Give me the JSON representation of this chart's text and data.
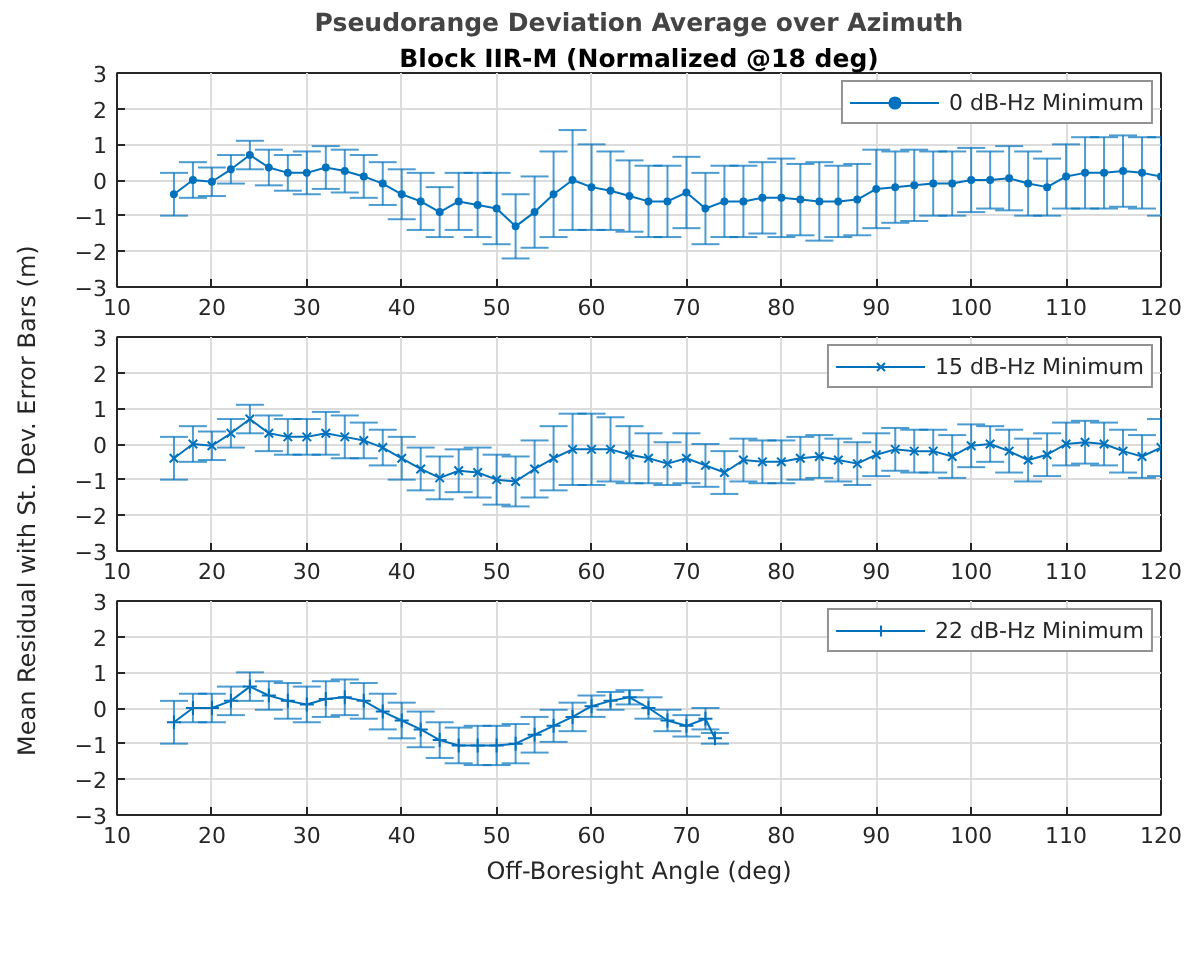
{
  "chart_data": [
    {
      "type": "line",
      "title": "Pseudorange Deviation Average over Azimuth",
      "subtitle": "Block IIR-M (Normalized @18 deg)",
      "x": [
        16,
        18,
        20,
        22,
        24,
        26,
        28,
        30,
        32,
        34,
        36,
        38,
        40,
        42,
        44,
        46,
        48,
        50,
        52,
        54,
        56,
        58,
        60,
        62,
        64,
        66,
        68,
        70,
        72,
        74,
        76,
        78,
        80,
        82,
        84,
        86,
        88,
        90,
        92,
        94,
        96,
        98,
        100,
        102,
        104,
        106,
        108,
        110,
        112,
        114,
        116,
        118,
        120
      ],
      "series": [
        {
          "name": "0 dB-Hz Minimum",
          "color": "#0072bd",
          "values": [
            -0.4,
            0.0,
            -0.05,
            0.3,
            0.7,
            0.35,
            0.2,
            0.2,
            0.35,
            0.25,
            0.1,
            -0.1,
            -0.4,
            -0.6,
            -0.9,
            -0.6,
            -0.7,
            -0.8,
            -1.3,
            -0.9,
            -0.4,
            0.0,
            -0.2,
            -0.3,
            -0.45,
            -0.6,
            -0.6,
            -0.35,
            -0.8,
            -0.6,
            -0.6,
            -0.5,
            -0.5,
            -0.55,
            -0.6,
            -0.6,
            -0.55,
            -0.25,
            -0.2,
            -0.15,
            -0.1,
            -0.1,
            0.0,
            0.0,
            0.05,
            -0.1,
            -0.2,
            0.1,
            0.2,
            0.2,
            0.25,
            0.2,
            0.1
          ],
          "errors": [
            0.6,
            0.5,
            0.4,
            0.4,
            0.4,
            0.5,
            0.5,
            0.6,
            0.6,
            0.6,
            0.6,
            0.6,
            0.7,
            0.8,
            0.7,
            0.8,
            0.9,
            1.0,
            0.9,
            1.0,
            1.2,
            1.4,
            1.2,
            1.1,
            1.0,
            1.0,
            1.0,
            1.0,
            1.0,
            1.0,
            1.0,
            1.0,
            1.1,
            1.0,
            1.1,
            1.0,
            1.0,
            1.1,
            1.0,
            1.0,
            0.9,
            0.9,
            0.9,
            0.8,
            0.9,
            0.9,
            0.8,
            0.9,
            1.0,
            1.0,
            1.0,
            1.0,
            1.1
          ]
        }
      ],
      "xlim": [
        10,
        120
      ],
      "xticks": [
        10,
        20,
        30,
        40,
        50,
        60,
        70,
        80,
        90,
        100,
        110,
        120
      ],
      "ylim": [
        -3,
        3
      ],
      "yticks": [
        -3,
        -2,
        -1,
        0,
        1,
        2,
        3
      ],
      "grid": true,
      "legend": "top right",
      "marker": "circle"
    },
    {
      "type": "line",
      "ylabel": "Mean Residual with St. Dev. Error Bars (m)",
      "x": [
        16,
        18,
        20,
        22,
        24,
        26,
        28,
        30,
        32,
        34,
        36,
        38,
        40,
        42,
        44,
        46,
        48,
        50,
        52,
        54,
        56,
        58,
        60,
        62,
        64,
        66,
        68,
        70,
        72,
        74,
        76,
        78,
        80,
        82,
        84,
        86,
        88,
        90,
        92,
        94,
        96,
        98,
        100,
        102,
        104,
        106,
        108,
        110,
        112,
        114,
        116,
        118,
        120
      ],
      "series": [
        {
          "name": "15 dB-Hz Minimum",
          "color": "#0072bd",
          "values": [
            -0.4,
            0.0,
            -0.05,
            0.3,
            0.7,
            0.3,
            0.2,
            0.2,
            0.3,
            0.2,
            0.1,
            -0.1,
            -0.4,
            -0.7,
            -0.95,
            -0.75,
            -0.8,
            -1.0,
            -1.05,
            -0.7,
            -0.4,
            -0.15,
            -0.15,
            -0.15,
            -0.3,
            -0.4,
            -0.55,
            -0.4,
            -0.6,
            -0.8,
            -0.45,
            -0.5,
            -0.5,
            -0.4,
            -0.35,
            -0.45,
            -0.55,
            -0.3,
            -0.15,
            -0.2,
            -0.2,
            -0.35,
            -0.05,
            0.0,
            -0.2,
            -0.45,
            -0.3,
            0.0,
            0.05,
            0.0,
            -0.2,
            -0.35,
            -0.1
          ],
          "errors": [
            0.6,
            0.5,
            0.4,
            0.4,
            0.4,
            0.5,
            0.5,
            0.5,
            0.6,
            0.6,
            0.5,
            0.5,
            0.6,
            0.6,
            0.6,
            0.6,
            0.7,
            0.7,
            0.7,
            0.8,
            0.9,
            1.0,
            1.0,
            0.9,
            0.8,
            0.7,
            0.6,
            0.7,
            0.6,
            0.6,
            0.6,
            0.6,
            0.6,
            0.6,
            0.6,
            0.6,
            0.6,
            0.6,
            0.6,
            0.6,
            0.6,
            0.6,
            0.6,
            0.5,
            0.6,
            0.6,
            0.6,
            0.6,
            0.6,
            0.6,
            0.6,
            0.6,
            0.8
          ]
        }
      ],
      "xlim": [
        10,
        120
      ],
      "xticks": [
        10,
        20,
        30,
        40,
        50,
        60,
        70,
        80,
        90,
        100,
        110,
        120
      ],
      "ylim": [
        -3,
        3
      ],
      "yticks": [
        -3,
        -2,
        -1,
        0,
        1,
        2,
        3
      ],
      "grid": true,
      "legend": "top right",
      "marker": "x"
    },
    {
      "type": "line",
      "xlabel": "Off-Boresight Angle (deg)",
      "x": [
        16,
        18,
        20,
        22,
        24,
        26,
        28,
        30,
        32,
        34,
        36,
        38,
        40,
        42,
        44,
        46,
        48,
        50,
        52,
        54,
        56,
        58,
        60,
        62,
        64,
        66,
        68,
        70,
        72,
        73
      ],
      "series": [
        {
          "name": "22 dB-Hz Minimum",
          "color": "#0072bd",
          "values": [
            -0.4,
            0.0,
            0.0,
            0.2,
            0.6,
            0.35,
            0.2,
            0.1,
            0.25,
            0.3,
            0.2,
            -0.1,
            -0.35,
            -0.6,
            -0.9,
            -1.05,
            -1.05,
            -1.05,
            -1.0,
            -0.75,
            -0.5,
            -0.25,
            0.05,
            0.2,
            0.3,
            0.0,
            -0.35,
            -0.5,
            -0.3,
            -0.85
          ],
          "errors": [
            0.6,
            0.4,
            0.4,
            0.4,
            0.4,
            0.4,
            0.5,
            0.5,
            0.5,
            0.5,
            0.5,
            0.5,
            0.5,
            0.5,
            0.5,
            0.5,
            0.55,
            0.55,
            0.55,
            0.5,
            0.45,
            0.4,
            0.3,
            0.25,
            0.2,
            0.3,
            0.3,
            0.3,
            0.3,
            0.15
          ]
        }
      ],
      "xlim": [
        10,
        120
      ],
      "xticks": [
        10,
        20,
        30,
        40,
        50,
        60,
        70,
        80,
        90,
        100,
        110,
        120
      ],
      "ylim": [
        -3,
        3
      ],
      "yticks": [
        -3,
        -2,
        -1,
        0,
        1,
        2,
        3
      ],
      "grid": true,
      "legend": "top right",
      "marker": "cross"
    }
  ]
}
